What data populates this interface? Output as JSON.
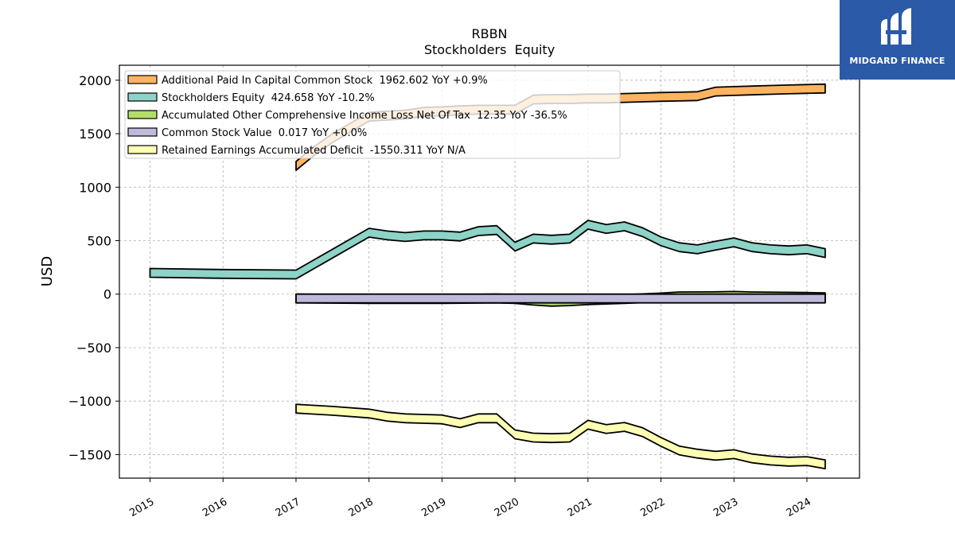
{
  "chart_data": {
    "type": "area",
    "ticker": "RBBN",
    "title": "Stockholders  Equity",
    "ylabel": "USD",
    "xlabel": "",
    "ylim": [
      -1720,
      2140
    ],
    "xlim": [
      2014.58,
      2024.72
    ],
    "yticks": [
      2000,
      1500,
      1000,
      500,
      0,
      -500,
      -1000,
      -1500
    ],
    "ytick_labels": [
      "2000",
      "1500",
      "1000",
      "500",
      "0",
      "−500",
      "−1000",
      "−1500"
    ],
    "xticks": [
      2015,
      2016,
      2017,
      2018,
      2019,
      2020,
      2021,
      2022,
      2023,
      2024
    ],
    "xtick_labels": [
      "2015",
      "2016",
      "2017",
      "2018",
      "2019",
      "2020",
      "2021",
      "2022",
      "2023",
      "2024"
    ],
    "grid": true,
    "legend_position": "top-left",
    "series": [
      {
        "name": "Additional Paid In Capital Common Stock",
        "legend": "Additional Paid In Capital Common Stock  1962.602 YoY +0.9%",
        "color": "#fdb462",
        "x": [
          2017.0,
          2017.25,
          2017.5,
          2017.75,
          2018.0,
          2018.25,
          2018.5,
          2018.75,
          2019.0,
          2019.25,
          2019.5,
          2019.75,
          2020.0,
          2020.25,
          2020.5,
          2020.75,
          2021.0,
          2021.25,
          2021.5,
          2021.75,
          2022.0,
          2022.25,
          2022.5,
          2022.75,
          2023.0,
          2023.25,
          2023.5,
          2023.75,
          2024.0,
          2024.25
        ],
        "y": [
          1240,
          1380,
          1500,
          1600,
          1700,
          1710,
          1720,
          1745,
          1750,
          1760,
          1765,
          1765,
          1765,
          1860,
          1865,
          1865,
          1870,
          1870,
          1875,
          1880,
          1885,
          1888,
          1892,
          1935,
          1940,
          1945,
          1950,
          1955,
          1959,
          1963
        ]
      },
      {
        "name": "Stockholders Equity",
        "legend": "Stockholders Equity  424.658 YoY -10.2%",
        "color": "#8dd3c7",
        "x": [
          2015.0,
          2016.0,
          2017.0,
          2017.5,
          2018.0,
          2018.25,
          2018.5,
          2018.75,
          2019.0,
          2019.25,
          2019.5,
          2019.75,
          2020.0,
          2020.25,
          2020.5,
          2020.75,
          2021.0,
          2021.25,
          2021.5,
          2021.75,
          2022.0,
          2022.25,
          2022.5,
          2022.75,
          2023.0,
          2023.25,
          2023.5,
          2023.75,
          2024.0,
          2024.25
        ],
        "y": [
          240,
          230,
          225,
          420,
          615,
          590,
          575,
          590,
          590,
          580,
          630,
          640,
          485,
          560,
          550,
          560,
          690,
          650,
          675,
          620,
          535,
          480,
          460,
          495,
          525,
          480,
          460,
          450,
          460,
          425
        ]
      },
      {
        "name": "Accumulated Other Comprehensive Income Loss Net Of Tax",
        "legend": "Accumulated Other Comprehensive Income Loss Net Of Tax  12.35 YoY -36.5%",
        "color": "#b3de69",
        "x": [
          2017.0,
          2018.0,
          2019.0,
          2019.75,
          2020.0,
          2020.25,
          2020.5,
          2020.75,
          2021.0,
          2021.5,
          2022.0,
          2022.25,
          2022.75,
          2023.0,
          2023.25,
          2024.0,
          2024.25
        ],
        "y": [
          0,
          -5,
          -5,
          0,
          -5,
          -20,
          -30,
          -25,
          -15,
          -5,
          10,
          20,
          22,
          25,
          20,
          15,
          12
        ]
      },
      {
        "name": "Common Stock Value",
        "legend": "Common Stock Value  0.017 YoY +0.0%",
        "color": "#bebada",
        "x": [
          2017.0,
          2024.25
        ],
        "y": [
          0.017,
          0.017
        ]
      },
      {
        "name": "Retained Earnings Accumulated Deficit",
        "legend": "Retained Earnings Accumulated Deficit  -1550.311 YoY N/A",
        "color": "#ffffb3",
        "x": [
          2017.0,
          2017.5,
          2018.0,
          2018.25,
          2018.5,
          2018.75,
          2019.0,
          2019.25,
          2019.5,
          2019.75,
          2020.0,
          2020.25,
          2020.5,
          2020.75,
          2021.0,
          2021.25,
          2021.5,
          2021.75,
          2022.0,
          2022.25,
          2022.5,
          2022.75,
          2023.0,
          2023.25,
          2023.5,
          2023.75,
          2024.0,
          2024.25
        ],
        "y": [
          -1030,
          -1050,
          -1075,
          -1105,
          -1120,
          -1125,
          -1130,
          -1165,
          -1120,
          -1120,
          -1270,
          -1300,
          -1305,
          -1300,
          -1180,
          -1220,
          -1200,
          -1250,
          -1340,
          -1420,
          -1450,
          -1470,
          -1455,
          -1495,
          -1515,
          -1525,
          -1520,
          -1550
        ]
      }
    ]
  },
  "logo": {
    "text": "MIDGARD FINANCE",
    "color": "#2b5aa8"
  }
}
